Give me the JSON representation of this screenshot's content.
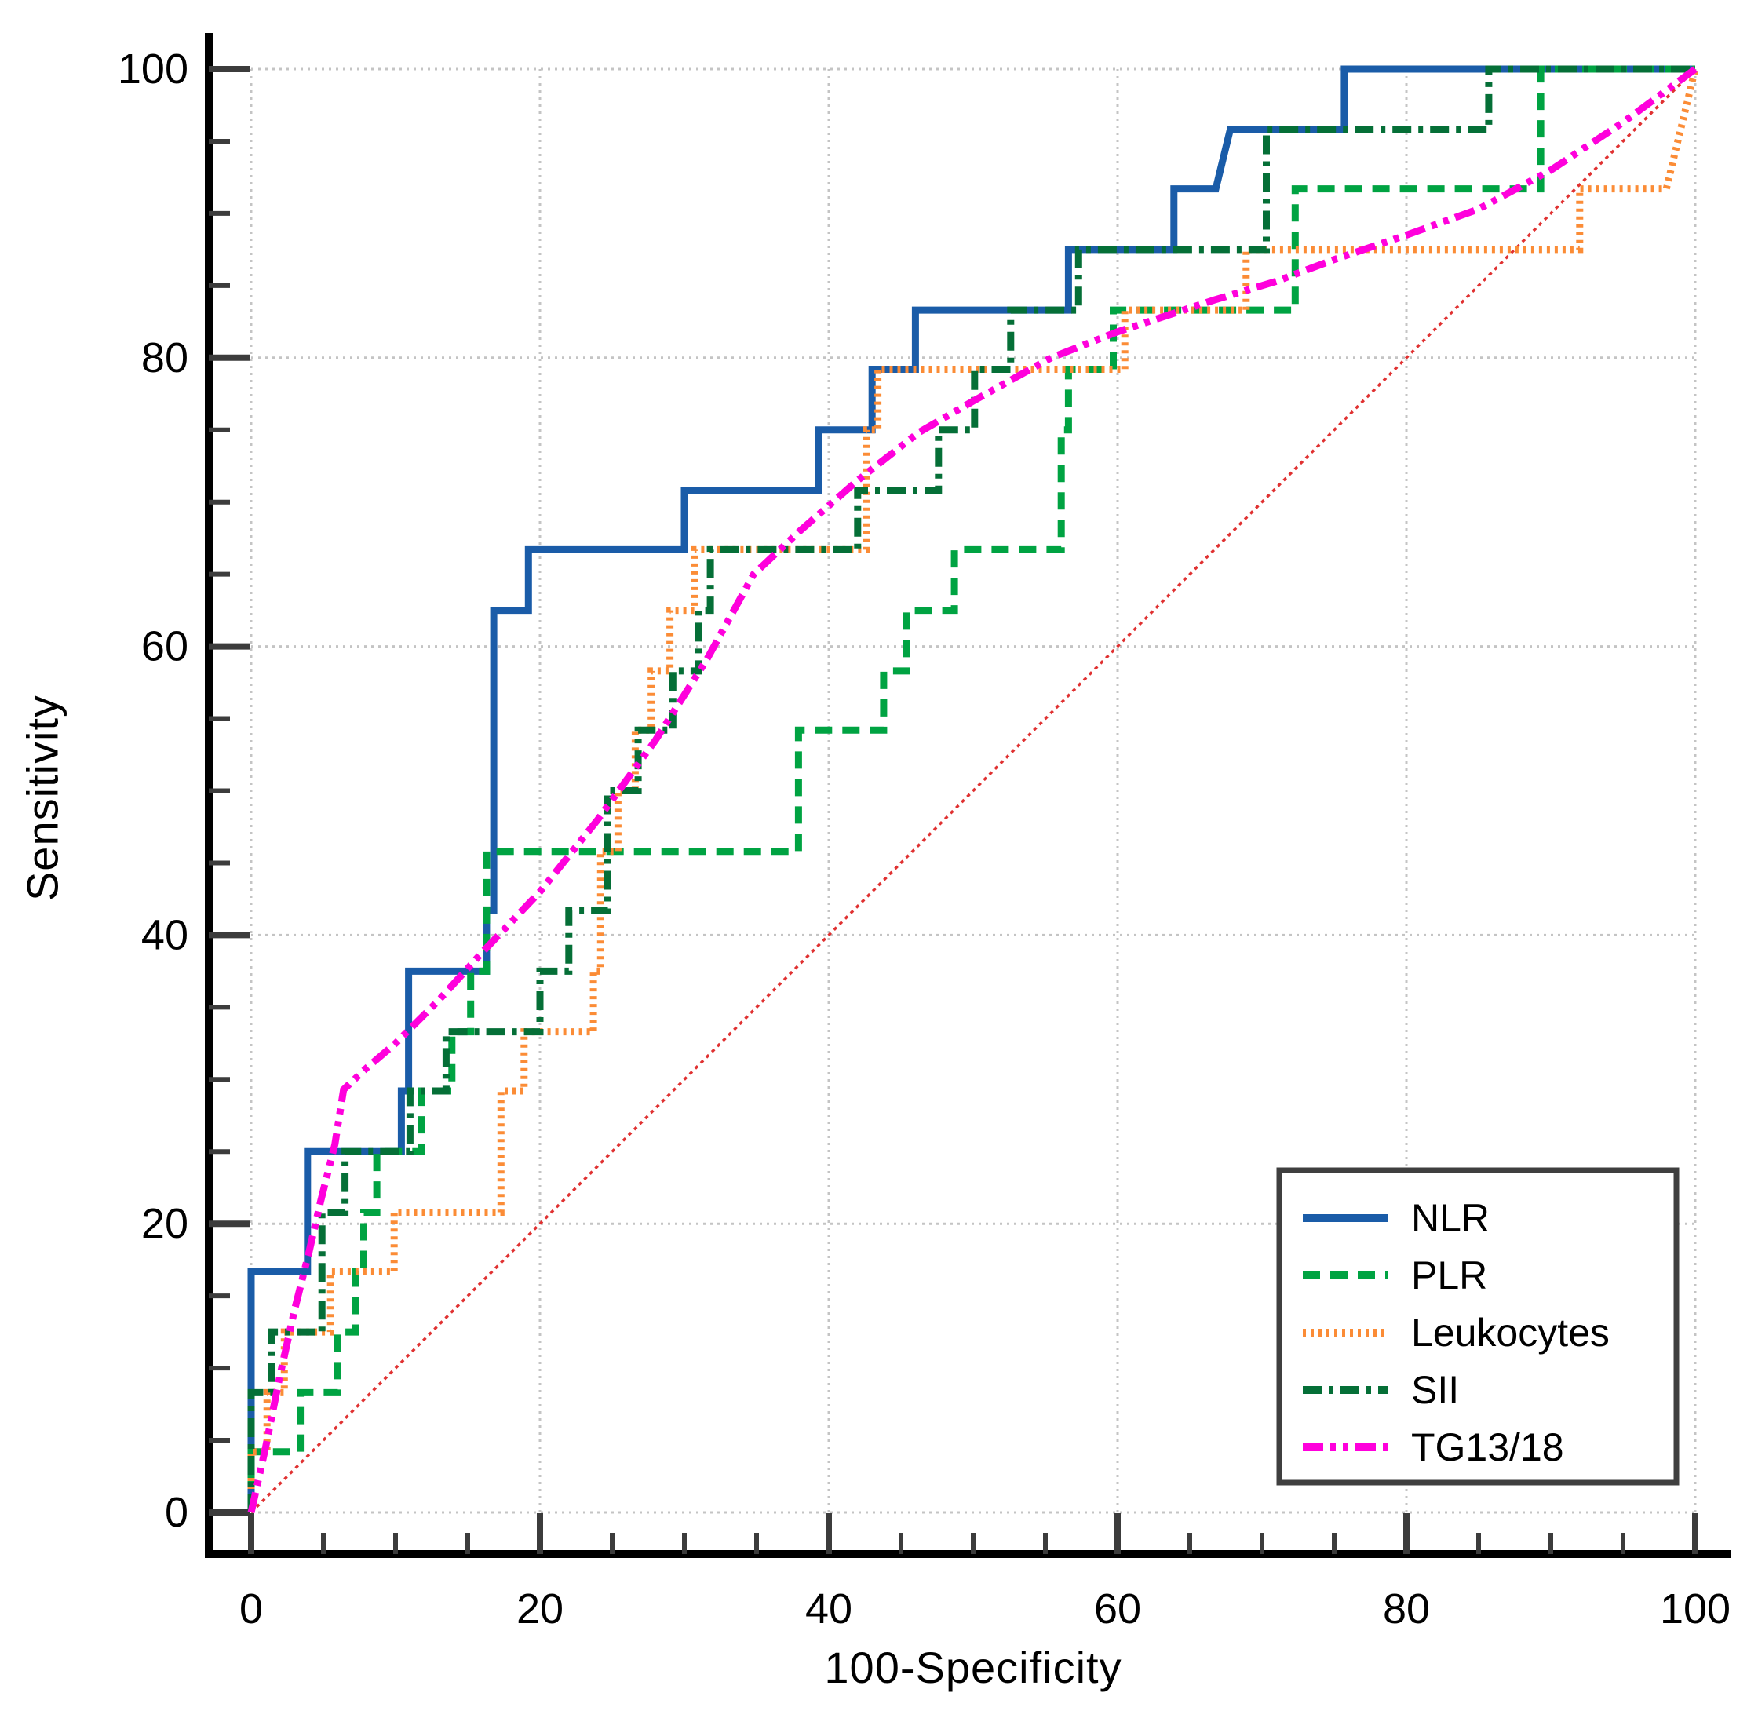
{
  "figure": {
    "xlabel": "100-Specificity",
    "ylabel": "Sensitivity",
    "x_tick_labels": [
      "0",
      "20",
      "40",
      "60",
      "80",
      "100"
    ],
    "y_tick_labels": [
      "0",
      "20",
      "40",
      "60",
      "80",
      "100"
    ]
  },
  "legend": {
    "items": [
      {
        "label": "NLR"
      },
      {
        "label": "PLR"
      },
      {
        "label": "Leukocytes"
      },
      {
        "label": "SII"
      },
      {
        "label": "TG13/18"
      }
    ]
  },
  "colors": {
    "nlr": "#1A5CA8",
    "plr": "#00A342",
    "leukocytes": "#FB8C36",
    "sii": "#056F37",
    "tg1318": "#FF00DC",
    "reference": "#E03131",
    "grid": "#c4c4c4",
    "axis": "#000000",
    "tick": "#3c3c3c",
    "legend_border": "#3f3f3f"
  },
  "chart_data": {
    "type": "line",
    "title": "",
    "xlabel": "100-Specificity",
    "ylabel": "Sensitivity",
    "xlim": [
      0,
      100
    ],
    "ylim": [
      0,
      100
    ],
    "x_ticks": [
      0,
      20,
      40,
      60,
      80,
      100
    ],
    "y_ticks": [
      0,
      20,
      40,
      60,
      80,
      100
    ],
    "minor_tick_step": 5,
    "grid": true,
    "legend_position": "lower right",
    "series": [
      {
        "name": "NLR",
        "style": "solid",
        "color": "#1A5CA8",
        "points": [
          [
            0,
            0
          ],
          [
            0,
            16.7
          ],
          [
            3.9,
            16.7
          ],
          [
            3.9,
            25
          ],
          [
            10.4,
            25
          ],
          [
            10.4,
            29.2
          ],
          [
            10.9,
            29.2
          ],
          [
            10.9,
            37.5
          ],
          [
            16.3,
            37.5
          ],
          [
            16.3,
            41.7
          ],
          [
            16.8,
            41.7
          ],
          [
            16.8,
            62.5
          ],
          [
            19.2,
            62.5
          ],
          [
            19.2,
            66.7
          ],
          [
            30,
            66.7
          ],
          [
            30,
            70.8
          ],
          [
            39.3,
            70.8
          ],
          [
            39.3,
            75
          ],
          [
            43,
            75
          ],
          [
            43,
            79.2
          ],
          [
            46,
            79.2
          ],
          [
            46,
            83.3
          ],
          [
            56.6,
            83.3
          ],
          [
            56.6,
            87.5
          ],
          [
            63.9,
            87.5
          ],
          [
            63.9,
            91.7
          ],
          [
            66.8,
            91.7
          ],
          [
            67.8,
            95.8
          ],
          [
            75.7,
            95.8
          ],
          [
            75.7,
            100
          ],
          [
            100,
            100
          ]
        ]
      },
      {
        "name": "PLR",
        "style": "dashed",
        "color": "#00A342",
        "points": [
          [
            0,
            0
          ],
          [
            0,
            4.2
          ],
          [
            3.4,
            4.2
          ],
          [
            3.4,
            8.3
          ],
          [
            6,
            8.3
          ],
          [
            6,
            12.5
          ],
          [
            7.2,
            12.5
          ],
          [
            7.2,
            16.7
          ],
          [
            7.8,
            16.7
          ],
          [
            7.8,
            20.8
          ],
          [
            8.7,
            20.8
          ],
          [
            8.7,
            25
          ],
          [
            11.8,
            25
          ],
          [
            11.8,
            29.2
          ],
          [
            13.9,
            29.2
          ],
          [
            13.9,
            33.3
          ],
          [
            15.2,
            33.3
          ],
          [
            15.2,
            37.5
          ],
          [
            16.3,
            37.5
          ],
          [
            16.3,
            45.8
          ],
          [
            37.9,
            45.8
          ],
          [
            37.9,
            54.2
          ],
          [
            43.8,
            54.2
          ],
          [
            43.8,
            58.3
          ],
          [
            45.4,
            58.3
          ],
          [
            45.4,
            62.5
          ],
          [
            48.7,
            62.5
          ],
          [
            48.7,
            66.7
          ],
          [
            56.1,
            66.7
          ],
          [
            56.1,
            75
          ],
          [
            56.6,
            75
          ],
          [
            56.6,
            79.2
          ],
          [
            59.7,
            79.2
          ],
          [
            59.7,
            83.3
          ],
          [
            72.3,
            83.3
          ],
          [
            72.3,
            91.7
          ],
          [
            89.3,
            91.7
          ],
          [
            89.3,
            100
          ],
          [
            100,
            100
          ]
        ]
      },
      {
        "name": "Leukocytes",
        "style": "dotted",
        "color": "#FB8C36",
        "points": [
          [
            0,
            0
          ],
          [
            0,
            4.2
          ],
          [
            1.1,
            4.2
          ],
          [
            1.1,
            8.3
          ],
          [
            2.3,
            8.3
          ],
          [
            2.3,
            12.5
          ],
          [
            5.5,
            12.5
          ],
          [
            5.5,
            16.7
          ],
          [
            9.9,
            16.7
          ],
          [
            9.9,
            20.8
          ],
          [
            17.3,
            20.8
          ],
          [
            17.3,
            29.2
          ],
          [
            18.9,
            29.2
          ],
          [
            18.9,
            33.3
          ],
          [
            23.7,
            33.3
          ],
          [
            23.7,
            37.5
          ],
          [
            24.2,
            37.5
          ],
          [
            24.2,
            45.8
          ],
          [
            25.4,
            45.8
          ],
          [
            25.4,
            50
          ],
          [
            26.6,
            50
          ],
          [
            26.6,
            54.2
          ],
          [
            27.7,
            54.2
          ],
          [
            27.7,
            58.3
          ],
          [
            29,
            58.3
          ],
          [
            29,
            62.5
          ],
          [
            30.7,
            62.5
          ],
          [
            30.7,
            66.7
          ],
          [
            42.6,
            66.7
          ],
          [
            42.6,
            75
          ],
          [
            43.4,
            75
          ],
          [
            43.4,
            79.2
          ],
          [
            60.5,
            79.2
          ],
          [
            60.5,
            83.3
          ],
          [
            68.9,
            83.3
          ],
          [
            68.9,
            87.5
          ],
          [
            92,
            87.5
          ],
          [
            92,
            91.7
          ],
          [
            98,
            91.7
          ],
          [
            100,
            100
          ]
        ]
      },
      {
        "name": "SII",
        "style": "dashdot",
        "color": "#056F37",
        "points": [
          [
            0,
            0
          ],
          [
            0,
            8.3
          ],
          [
            1.4,
            8.3
          ],
          [
            1.4,
            12.5
          ],
          [
            4.9,
            12.5
          ],
          [
            4.9,
            20.8
          ],
          [
            6.5,
            20.8
          ],
          [
            6.5,
            25
          ],
          [
            11,
            25
          ],
          [
            11,
            29.2
          ],
          [
            13.5,
            29.2
          ],
          [
            13.5,
            33.3
          ],
          [
            20,
            33.3
          ],
          [
            20,
            37.5
          ],
          [
            22,
            37.5
          ],
          [
            22,
            41.7
          ],
          [
            24.7,
            41.7
          ],
          [
            24.7,
            50
          ],
          [
            26.8,
            50
          ],
          [
            26.8,
            54.2
          ],
          [
            29.2,
            54.2
          ],
          [
            29.2,
            58.3
          ],
          [
            31,
            58.3
          ],
          [
            31,
            62.5
          ],
          [
            31.8,
            62.5
          ],
          [
            31.8,
            66.7
          ],
          [
            42,
            66.7
          ],
          [
            42,
            70.8
          ],
          [
            47.6,
            70.8
          ],
          [
            47.6,
            75
          ],
          [
            50.1,
            75
          ],
          [
            50.1,
            79.2
          ],
          [
            52.6,
            79.2
          ],
          [
            52.6,
            83.3
          ],
          [
            57.3,
            83.3
          ],
          [
            57.3,
            87.5
          ],
          [
            70.3,
            87.5
          ],
          [
            70.3,
            95.8
          ],
          [
            85.7,
            95.8
          ],
          [
            85.7,
            100
          ],
          [
            100,
            100
          ]
        ]
      },
      {
        "name": "TG13/18",
        "style": "dashdotdot",
        "color": "#FF00DC",
        "points": [
          [
            0,
            0
          ],
          [
            1,
            4.5
          ],
          [
            2,
            9.5
          ],
          [
            3,
            14
          ],
          [
            4,
            18
          ],
          [
            4.8,
            21.5
          ],
          [
            5.8,
            25.5
          ],
          [
            6.4,
            29.3
          ],
          [
            8,
            30.8
          ],
          [
            10,
            32.5
          ],
          [
            13,
            35.5
          ],
          [
            16,
            38.8
          ],
          [
            20,
            43
          ],
          [
            24,
            48
          ],
          [
            28,
            53.5
          ],
          [
            31.5,
            59
          ],
          [
            34.8,
            65
          ],
          [
            38,
            68
          ],
          [
            42,
            71.5
          ],
          [
            46.2,
            74.8
          ],
          [
            50,
            77
          ],
          [
            55.4,
            80
          ],
          [
            60,
            81.8
          ],
          [
            66.7,
            84
          ],
          [
            71,
            85.3
          ],
          [
            75,
            86.8
          ],
          [
            80,
            88.5
          ],
          [
            85,
            90.3
          ],
          [
            90,
            93
          ],
          [
            95,
            96.3
          ],
          [
            100,
            100
          ]
        ]
      }
    ],
    "reference_line": {
      "name": "chance diagonal",
      "points": [
        [
          0,
          0
        ],
        [
          100,
          100
        ]
      ],
      "color": "#E03131"
    }
  }
}
